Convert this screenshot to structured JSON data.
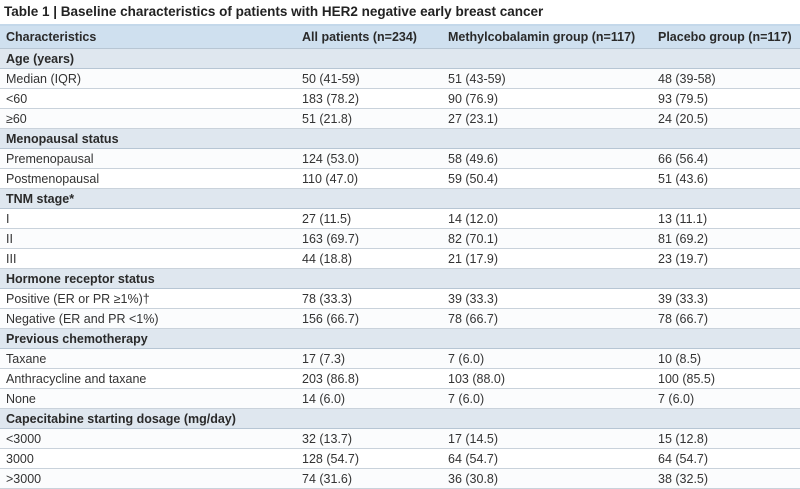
{
  "title": "Table 1 | Baseline characteristics of patients with HER2 negative early breast cancer",
  "columns": [
    "Characteristics",
    "All patients (n=234)",
    "Methylcobalamin group (n=117)",
    "Placebo group (n=117)"
  ],
  "sections": [
    {
      "heading": "Age (years)",
      "rows": [
        [
          "Median (IQR)",
          "50 (41-59)",
          "51 (43-59)",
          "48 (39-58)"
        ],
        [
          "<60",
          "183 (78.2)",
          "90 (76.9)",
          "93 (79.5)"
        ],
        [
          "≥60",
          "51 (21.8)",
          "27 (23.1)",
          "24 (20.5)"
        ]
      ]
    },
    {
      "heading": "Menopausal status",
      "rows": [
        [
          "Premenopausal",
          "124 (53.0)",
          "58 (49.6)",
          "66 (56.4)"
        ],
        [
          "Postmenopausal",
          "110 (47.0)",
          "59 (50.4)",
          "51 (43.6)"
        ]
      ]
    },
    {
      "heading": "TNM stage*",
      "rows": [
        [
          "I",
          "27 (11.5)",
          "14 (12.0)",
          "13 (11.1)"
        ],
        [
          "II",
          "163 (69.7)",
          "82 (70.1)",
          "81 (69.2)"
        ],
        [
          "III",
          "44 (18.8)",
          "21 (17.9)",
          "23 (19.7)"
        ]
      ]
    },
    {
      "heading": "Hormone receptor status",
      "rows": [
        [
          "Positive (ER or PR ≥1%)†",
          "78 (33.3)",
          "39 (33.3)",
          "39 (33.3)"
        ],
        [
          "Negative (ER and PR <1%)",
          "156 (66.7)",
          "78 (66.7)",
          "78 (66.7)"
        ]
      ]
    },
    {
      "heading": "Previous chemotherapy",
      "rows": [
        [
          "Taxane",
          "17 (7.3)",
          "7 (6.0)",
          "10 (8.5)"
        ],
        [
          "Anthracycline and taxane",
          "203 (86.8)",
          "103 (88.0)",
          "100 (85.5)"
        ],
        [
          "None",
          "14 (6.0)",
          "7 (6.0)",
          "7 (6.0)"
        ]
      ]
    },
    {
      "heading": "Capecitabine starting dosage (mg/day)",
      "rows": [
        [
          "<3000",
          "32 (13.7)",
          "17 (14.5)",
          "15 (12.8)"
        ],
        [
          "3000",
          "128 (54.7)",
          "64 (54.7)",
          "64 (54.7)"
        ],
        [
          ">3000",
          "74 (31.6)",
          "36 (30.8)",
          "38 (32.5)"
        ]
      ]
    }
  ]
}
